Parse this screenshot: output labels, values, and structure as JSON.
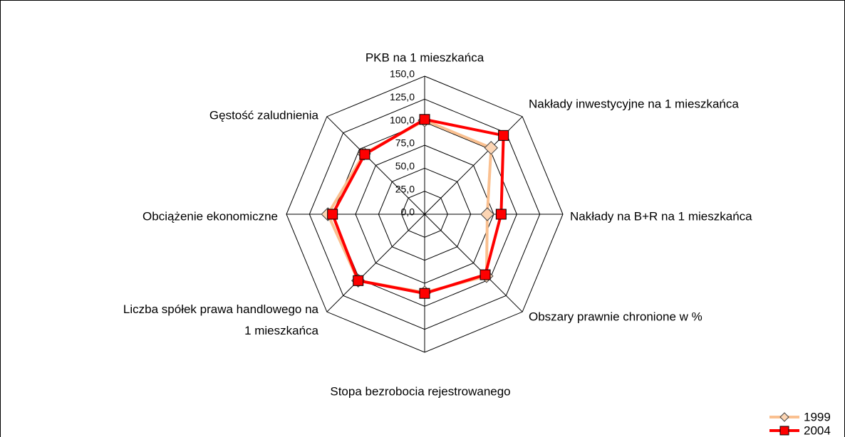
{
  "chart_data": {
    "type": "radar",
    "categories": [
      "PKB na 1 mieszkańca",
      "Nakłady inwestycyjne na 1 mieszkańca",
      "Nakłady na B+R na 1 mieszkańca",
      "Obszary prawnie chronione w %",
      "Stopa bezrobocia rejestrowanego",
      "Liczba spółek prawa handlowego na\n1 mieszkańca",
      "Obciążenie ekonomiczne",
      "Gęstość zaludnienia"
    ],
    "series": [
      {
        "name": "1999",
        "color": "#fac090",
        "marker_fill": "#fcd5b4",
        "values": [
          102,
          102,
          68,
          95,
          85,
          102,
          105,
          93
        ]
      },
      {
        "name": "2004",
        "color": "#ff0000",
        "marker_fill": "#ff0000",
        "values": [
          103,
          121,
          83,
          93,
          86,
          102,
          100,
          92
        ]
      }
    ],
    "ylim": [
      0,
      150
    ],
    "yticks": [
      {
        "value": 0,
        "label": "0,0"
      },
      {
        "value": 25,
        "label": "25,0"
      },
      {
        "value": 50,
        "label": "50,0"
      },
      {
        "value": 75,
        "label": "75,0"
      },
      {
        "value": 100,
        "label": "100,0"
      },
      {
        "value": 125,
        "label": "125,0"
      },
      {
        "value": 150,
        "label": "150,0"
      }
    ],
    "grid": true,
    "legend": "bottom-right"
  }
}
